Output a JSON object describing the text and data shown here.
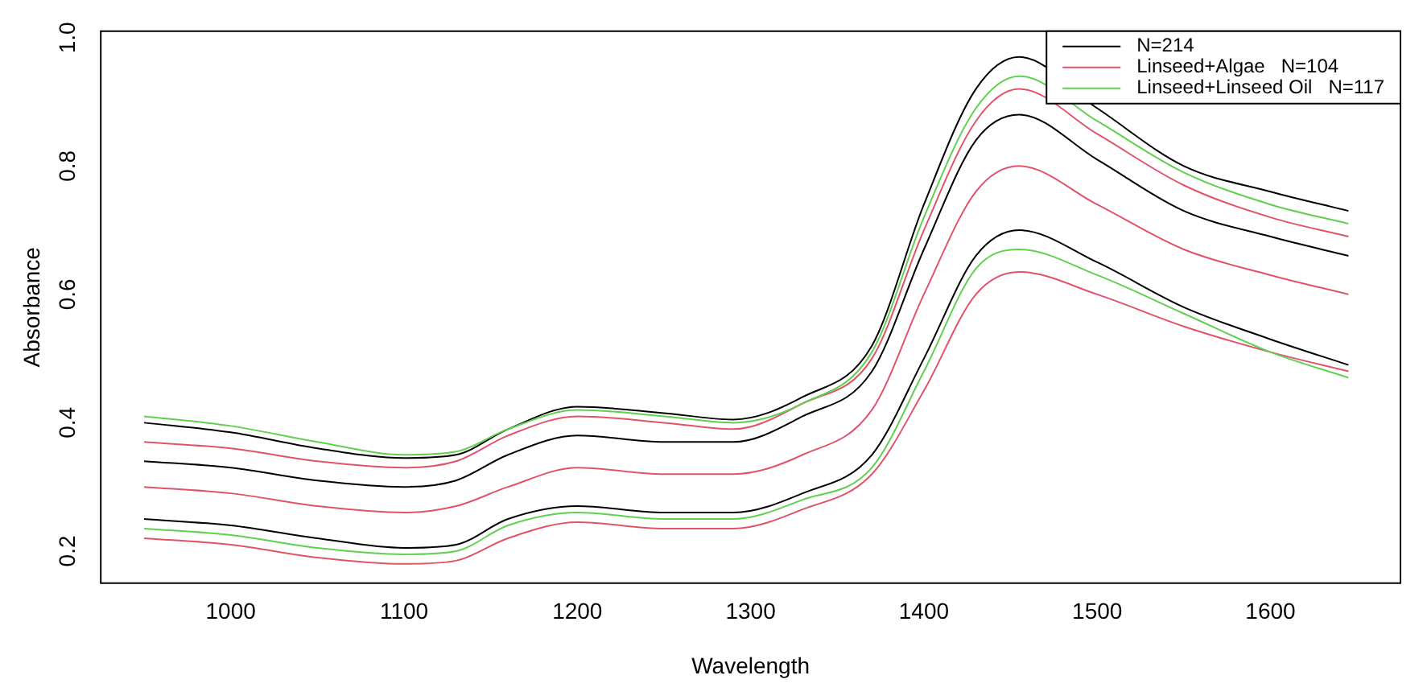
{
  "chart_data": {
    "type": "line",
    "xlabel": "Wavelength",
    "ylabel": "Absorbance",
    "x": [
      950,
      1000,
      1050,
      1100,
      1130,
      1160,
      1200,
      1250,
      1290,
      1330,
      1370,
      1400,
      1430,
      1455,
      1500,
      1550,
      1600,
      1645
    ],
    "xlim": [
      925,
      1675
    ],
    "xticks": [
      1000,
      1100,
      1200,
      1300,
      1400,
      1500,
      1600
    ],
    "ylim": [
      0.15,
      1.01
    ],
    "yticks": [
      0.2,
      0.4,
      0.6,
      0.8,
      {
        "value": 1,
        "label": "1.0"
      }
    ],
    "grid": false,
    "legend": "top right",
    "marker": "none",
    "line_style": "solid",
    "series": [
      {
        "name": "N=214",
        "color": "#000000",
        "values": [
          0.4,
          0.385,
          0.36,
          0.345,
          0.35,
          0.39,
          0.425,
          0.415,
          0.405,
          0.44,
          0.52,
          0.74,
          0.92,
          0.97,
          0.89,
          0.8,
          0.76,
          0.73
        ]
      },
      {
        "color": "#000000",
        "values": [
          0.34,
          0.33,
          0.31,
          0.3,
          0.31,
          0.35,
          0.38,
          0.37,
          0.37,
          0.41,
          0.48,
          0.67,
          0.84,
          0.88,
          0.81,
          0.73,
          0.69,
          0.66
        ]
      },
      {
        "color": "#000000",
        "values": [
          0.25,
          0.24,
          0.22,
          0.205,
          0.21,
          0.25,
          0.27,
          0.26,
          0.26,
          0.29,
          0.35,
          0.5,
          0.66,
          0.7,
          0.65,
          0.58,
          0.53,
          0.49
        ]
      },
      {
        "name": "Linseed+Algae   N=104",
        "color": "#df536b",
        "values": [
          0.37,
          0.36,
          0.34,
          0.33,
          0.34,
          0.38,
          0.41,
          0.4,
          0.39,
          0.43,
          0.5,
          0.7,
          0.87,
          0.92,
          0.85,
          0.77,
          0.72,
          0.69
        ]
      },
      {
        "color": "#df536b",
        "values": [
          0.3,
          0.29,
          0.27,
          0.26,
          0.27,
          0.3,
          0.33,
          0.32,
          0.32,
          0.35,
          0.42,
          0.6,
          0.76,
          0.8,
          0.74,
          0.67,
          0.63,
          0.6
        ]
      },
      {
        "color": "#df536b",
        "values": [
          0.22,
          0.21,
          0.19,
          0.18,
          0.185,
          0.22,
          0.245,
          0.235,
          0.235,
          0.265,
          0.32,
          0.45,
          0.6,
          0.635,
          0.6,
          0.55,
          0.51,
          0.48
        ]
      },
      {
        "name": "Linseed+Linseed Oil   N=117",
        "color": "#61d04f",
        "values": [
          0.41,
          0.395,
          0.37,
          0.35,
          0.355,
          0.39,
          0.42,
          0.41,
          0.4,
          0.43,
          0.51,
          0.72,
          0.89,
          0.94,
          0.87,
          0.79,
          0.74,
          0.71
        ]
      },
      {
        "color": "#61d04f",
        "values": [
          0.235,
          0.225,
          0.205,
          0.195,
          0.2,
          0.24,
          0.26,
          0.25,
          0.25,
          0.28,
          0.33,
          0.48,
          0.64,
          0.67,
          0.63,
          0.57,
          0.51,
          0.47
        ]
      }
    ]
  }
}
